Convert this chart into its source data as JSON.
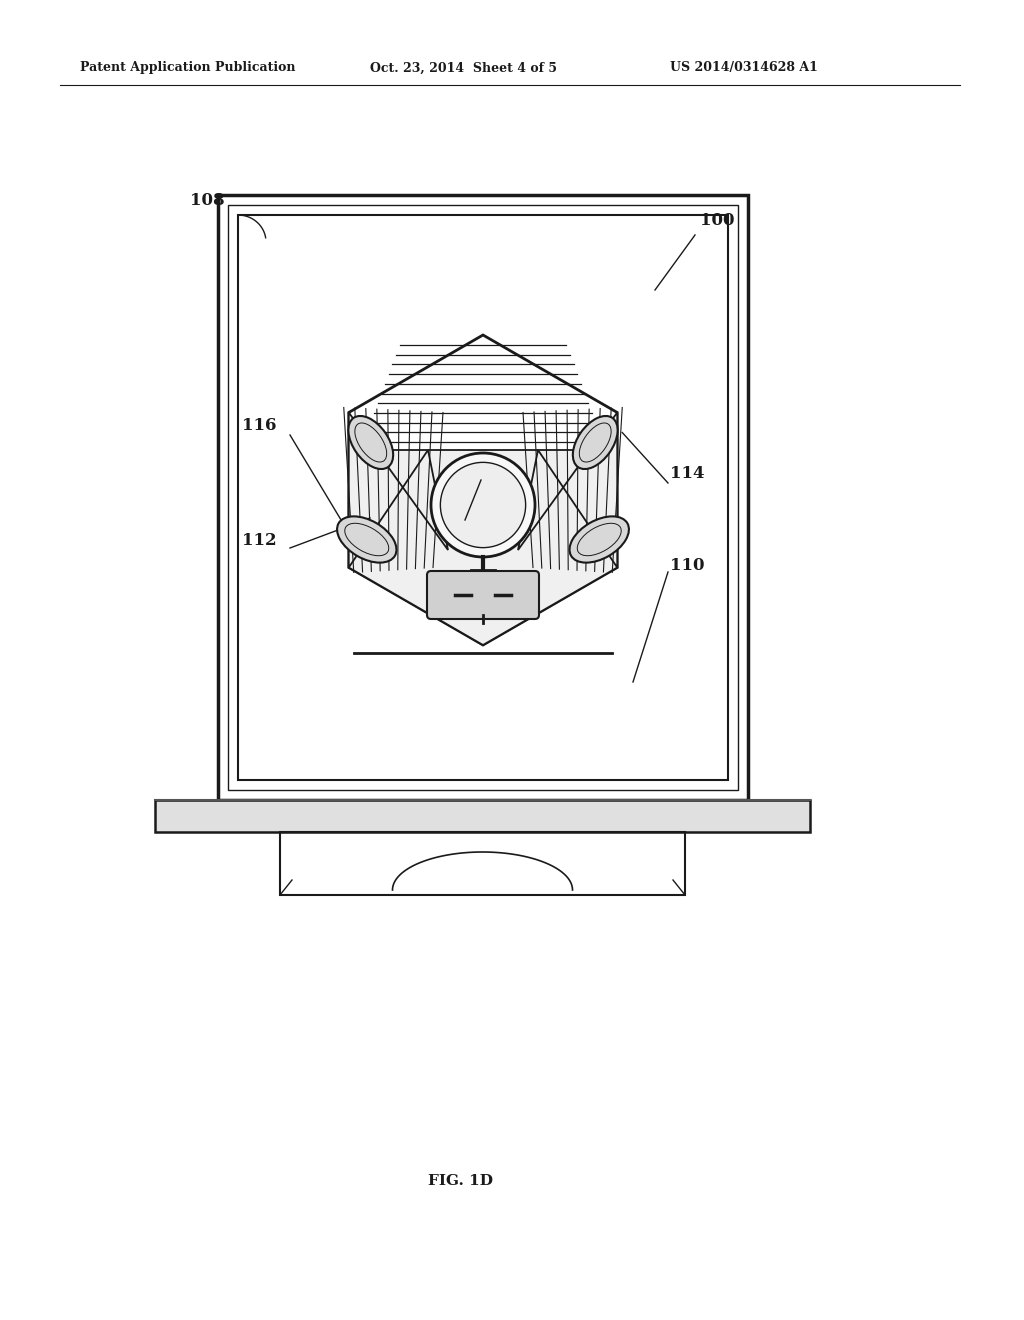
{
  "background_color": "#ffffff",
  "header_left": "Patent Application Publication",
  "header_center": "Oct. 23, 2014  Sheet 4 of 5",
  "header_right": "US 2014/0314628 A1",
  "figure_label": "FIG. 1D",
  "line_color": "#1a1a1a",
  "text_color": "#1a1a1a",
  "header_fontsize": 9,
  "label_fontsize": 12
}
